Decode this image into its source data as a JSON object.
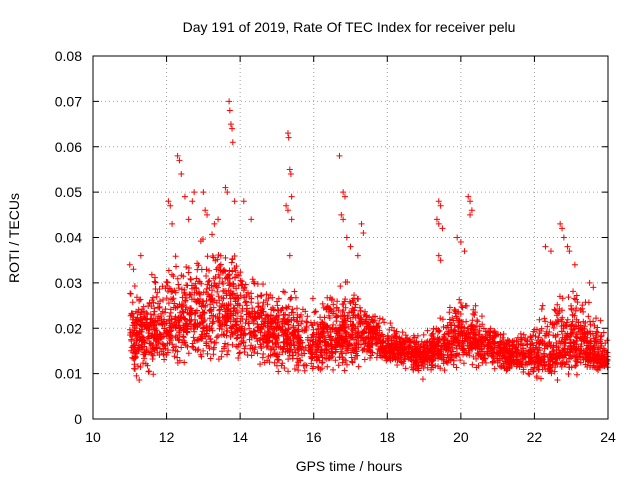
{
  "chart_data": {
    "type": "scatter",
    "title": "Day 191 of 2019, Rate Of TEC Index for receiver pelu",
    "xlabel": "GPS time / hours",
    "ylabel": "ROTI / TECUs",
    "xlim": [
      10,
      24
    ],
    "ylim": [
      0,
      0.08
    ],
    "x_ticks": [
      10,
      12,
      14,
      16,
      18,
      20,
      22,
      24
    ],
    "x_tick_labels": [
      "10",
      "12",
      "14",
      "16",
      "18",
      "20",
      "22",
      "24"
    ],
    "y_ticks": [
      0,
      0.01,
      0.02,
      0.03,
      0.04,
      0.05,
      0.06,
      0.07,
      0.08
    ],
    "y_tick_labels": [
      "0",
      "0.01",
      "0.02",
      "0.03",
      "0.04",
      "0.05",
      "0.06",
      "0.07",
      "0.08"
    ],
    "grid": true,
    "marker": "plus",
    "color": "#ff0000",
    "x_range_observed": [
      11.0,
      24.0
    ],
    "envelope": {
      "description": "approximate lower/median/upper ROTI values per GPS hour",
      "x": [
        11.0,
        11.5,
        12.0,
        12.5,
        13.0,
        13.5,
        14.0,
        14.5,
        15.0,
        15.5,
        16.0,
        16.5,
        17.0,
        17.5,
        18.0,
        18.5,
        19.0,
        19.5,
        20.0,
        20.5,
        21.0,
        21.5,
        22.0,
        22.5,
        23.0,
        23.5,
        24.0
      ],
      "lower": [
        0.008,
        0.008,
        0.009,
        0.01,
        0.01,
        0.011,
        0.011,
        0.01,
        0.009,
        0.008,
        0.007,
        0.009,
        0.01,
        0.011,
        0.011,
        0.01,
        0.009,
        0.01,
        0.011,
        0.01,
        0.01,
        0.009,
        0.008,
        0.008,
        0.007,
        0.009,
        0.01
      ],
      "median": [
        0.018,
        0.019,
        0.021,
        0.022,
        0.022,
        0.024,
        0.023,
        0.021,
        0.019,
        0.018,
        0.017,
        0.018,
        0.019,
        0.019,
        0.016,
        0.015,
        0.014,
        0.016,
        0.019,
        0.017,
        0.015,
        0.014,
        0.014,
        0.015,
        0.018,
        0.015,
        0.013
      ],
      "upper": [
        0.034,
        0.033,
        0.036,
        0.04,
        0.043,
        0.045,
        0.04,
        0.032,
        0.03,
        0.03,
        0.027,
        0.032,
        0.033,
        0.025,
        0.022,
        0.02,
        0.02,
        0.026,
        0.03,
        0.027,
        0.022,
        0.021,
        0.024,
        0.028,
        0.032,
        0.027,
        0.02
      ]
    },
    "spikes": [
      {
        "x": 11.0,
        "y": 0.034
      },
      {
        "x": 11.1,
        "y": 0.033
      },
      {
        "x": 11.3,
        "y": 0.036
      },
      {
        "x": 12.05,
        "y": 0.048
      },
      {
        "x": 12.1,
        "y": 0.047
      },
      {
        "x": 12.15,
        "y": 0.043
      },
      {
        "x": 12.3,
        "y": 0.058
      },
      {
        "x": 12.35,
        "y": 0.057
      },
      {
        "x": 12.4,
        "y": 0.054
      },
      {
        "x": 12.5,
        "y": 0.049
      },
      {
        "x": 12.6,
        "y": 0.044
      },
      {
        "x": 12.7,
        "y": 0.048
      },
      {
        "x": 12.75,
        "y": 0.05
      },
      {
        "x": 13.0,
        "y": 0.05
      },
      {
        "x": 13.05,
        "y": 0.046
      },
      {
        "x": 13.1,
        "y": 0.045
      },
      {
        "x": 13.3,
        "y": 0.043
      },
      {
        "x": 13.4,
        "y": 0.044
      },
      {
        "x": 13.6,
        "y": 0.051
      },
      {
        "x": 13.65,
        "y": 0.05
      },
      {
        "x": 13.7,
        "y": 0.07
      },
      {
        "x": 13.72,
        "y": 0.068
      },
      {
        "x": 13.75,
        "y": 0.065
      },
      {
        "x": 13.78,
        "y": 0.064
      },
      {
        "x": 13.8,
        "y": 0.061
      },
      {
        "x": 13.85,
        "y": 0.048
      },
      {
        "x": 14.1,
        "y": 0.048
      },
      {
        "x": 14.3,
        "y": 0.044
      },
      {
        "x": 15.3,
        "y": 0.063
      },
      {
        "x": 15.32,
        "y": 0.062
      },
      {
        "x": 15.35,
        "y": 0.055
      },
      {
        "x": 15.38,
        "y": 0.054
      },
      {
        "x": 15.4,
        "y": 0.049
      },
      {
        "x": 15.25,
        "y": 0.047
      },
      {
        "x": 15.3,
        "y": 0.046
      },
      {
        "x": 15.4,
        "y": 0.044
      },
      {
        "x": 15.35,
        "y": 0.036
      },
      {
        "x": 16.7,
        "y": 0.058
      },
      {
        "x": 16.8,
        "y": 0.05
      },
      {
        "x": 16.85,
        "y": 0.049
      },
      {
        "x": 16.75,
        "y": 0.045
      },
      {
        "x": 16.8,
        "y": 0.044
      },
      {
        "x": 16.9,
        "y": 0.04
      },
      {
        "x": 17.0,
        "y": 0.038
      },
      {
        "x": 17.2,
        "y": 0.036
      },
      {
        "x": 17.3,
        "y": 0.043
      },
      {
        "x": 17.35,
        "y": 0.041
      },
      {
        "x": 19.4,
        "y": 0.048
      },
      {
        "x": 19.45,
        "y": 0.047
      },
      {
        "x": 19.35,
        "y": 0.044
      },
      {
        "x": 19.4,
        "y": 0.043
      },
      {
        "x": 19.5,
        "y": 0.042
      },
      {
        "x": 19.4,
        "y": 0.036
      },
      {
        "x": 19.45,
        "y": 0.035
      },
      {
        "x": 19.9,
        "y": 0.04
      },
      {
        "x": 20.0,
        "y": 0.039
      },
      {
        "x": 20.1,
        "y": 0.037
      },
      {
        "x": 20.2,
        "y": 0.049
      },
      {
        "x": 20.25,
        "y": 0.048
      },
      {
        "x": 20.3,
        "y": 0.046
      },
      {
        "x": 20.25,
        "y": 0.045
      },
      {
        "x": 22.3,
        "y": 0.038
      },
      {
        "x": 22.45,
        "y": 0.037
      },
      {
        "x": 22.7,
        "y": 0.043
      },
      {
        "x": 22.75,
        "y": 0.042
      },
      {
        "x": 22.8,
        "y": 0.04
      },
      {
        "x": 22.9,
        "y": 0.038
      },
      {
        "x": 22.95,
        "y": 0.037
      },
      {
        "x": 23.1,
        "y": 0.034
      },
      {
        "x": 23.5,
        "y": 0.03
      },
      {
        "x": 23.6,
        "y": 0.029
      }
    ],
    "approx_point_count": 3400
  }
}
